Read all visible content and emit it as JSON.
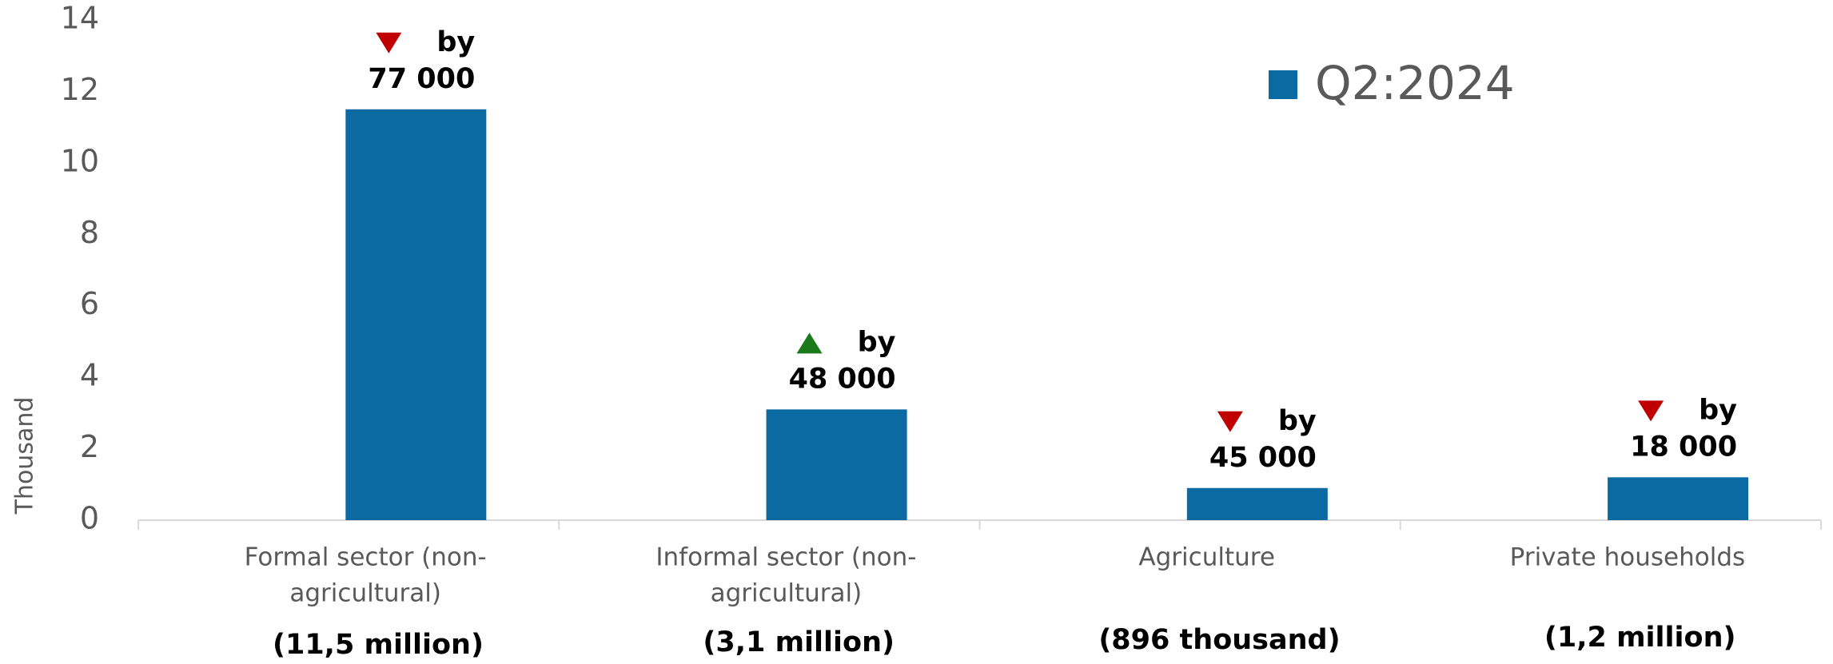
{
  "chart_data": {
    "type": "bar",
    "categories": [
      [
        "Formal sector (non-",
        "agricultural)"
      ],
      [
        "Informal sector (non-",
        "agricultural)"
      ],
      [
        "Agriculture"
      ],
      [
        "Private households"
      ]
    ],
    "series": [
      {
        "name": "Q2:2024",
        "color": "#0b6aa2",
        "values": [
          11.5,
          3.1,
          0.9,
          1.2
        ]
      }
    ],
    "ylabel": "Thousand",
    "ylim": [
      0,
      14
    ],
    "yticks": [
      0,
      2,
      4,
      6,
      8,
      10,
      12,
      14
    ],
    "legend": "upper right",
    "arrow_colors": {
      "down": "#c00000",
      "up": "#1a7a1a"
    },
    "annotations": [
      {
        "direction": "down",
        "text": "by",
        "change": "77 000",
        "total": "(11,5 million)"
      },
      {
        "direction": "up",
        "text": "by",
        "change": "48 000",
        "total": "(3,1 million)"
      },
      {
        "direction": "down",
        "text": "by",
        "change": "45 000",
        "total": "(896 thousand)"
      },
      {
        "direction": "down",
        "text": "by",
        "change": "18 000",
        "total": "(1,2 million)"
      }
    ]
  }
}
